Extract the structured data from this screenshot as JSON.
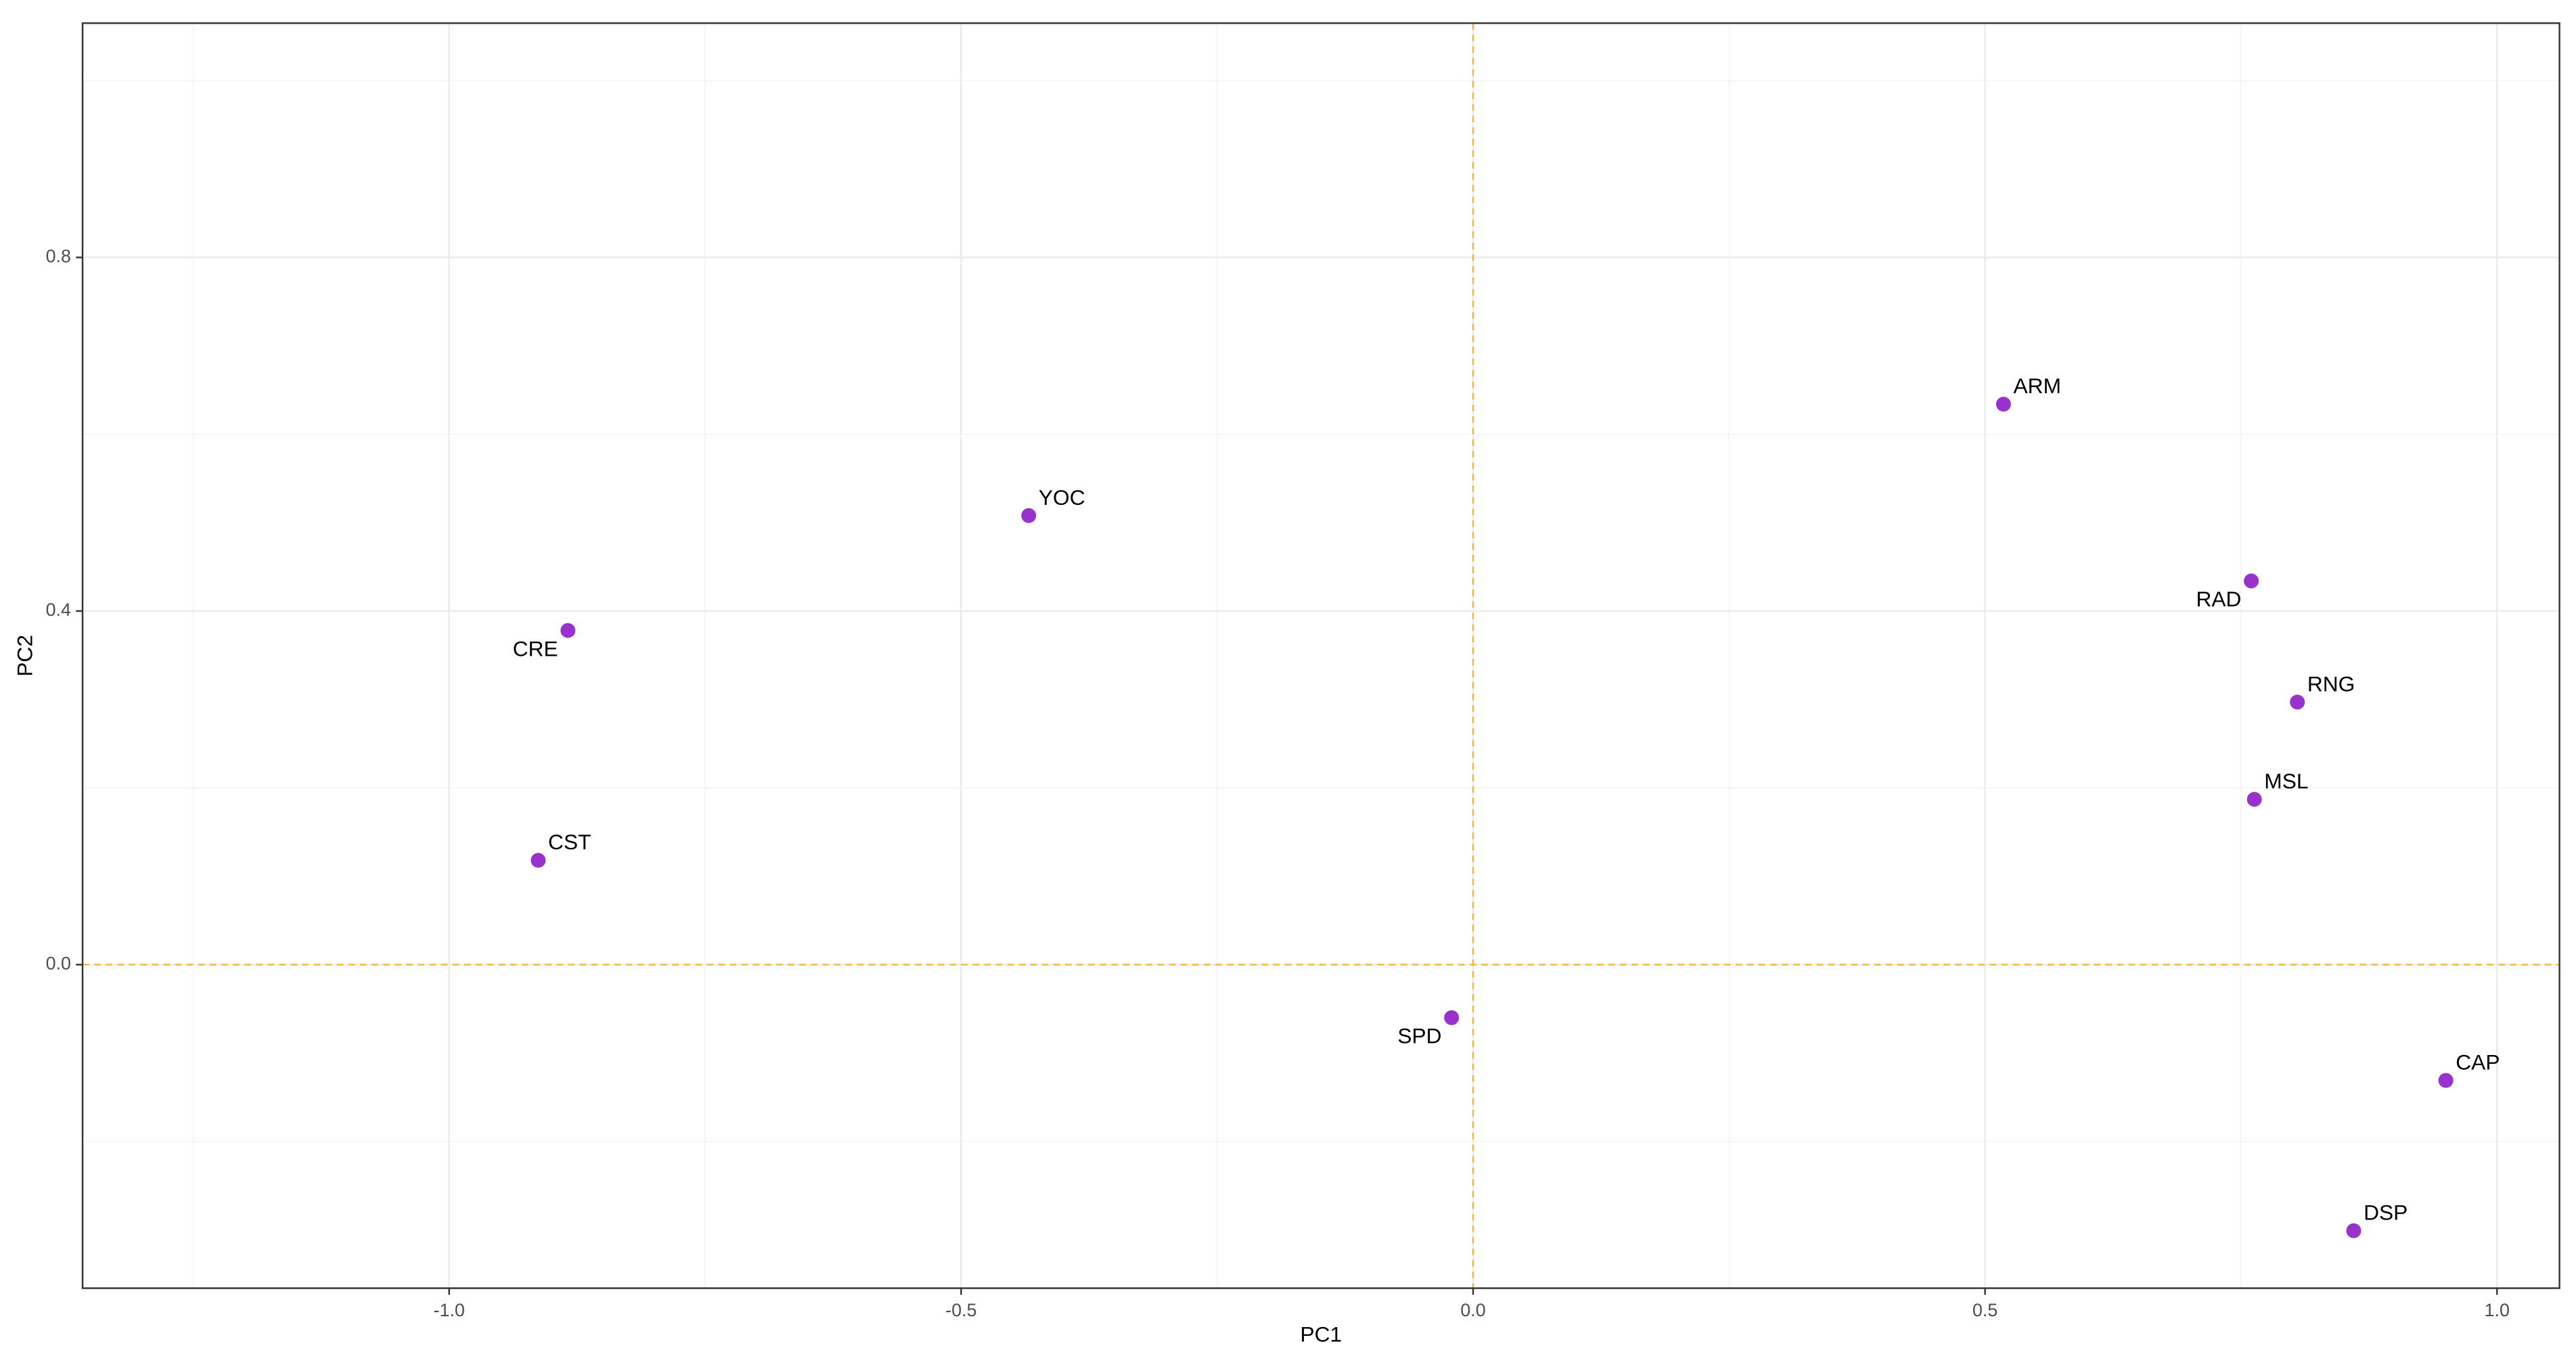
{
  "chart_data": {
    "type": "scatter",
    "xlabel": "PC1",
    "ylabel": "PC2",
    "labels": [
      "ARM",
      "YOC",
      "RAD",
      "CRE",
      "RNG",
      "MSL",
      "CST",
      "SPD",
      "CAP",
      "DSP"
    ],
    "x": [
      0.518,
      -0.434,
      0.76,
      -0.884,
      0.805,
      0.763,
      -0.913,
      -0.021,
      0.95,
      0.86
    ],
    "y": [
      0.634,
      0.508,
      0.434,
      0.378,
      0.297,
      0.187,
      0.118,
      -0.06,
      -0.131,
      -0.301
    ],
    "color": "#9932cc",
    "xlim": [
      -1.358,
      1.061
    ],
    "ylim": [
      -0.366,
      1.065
    ],
    "xticks": [
      {
        "value": -1.0,
        "label": "-1.0"
      },
      -0.5,
      {
        "value": 0,
        "label": "0.0"
      },
      0.5,
      {
        "value": 1.0,
        "label": "1.0"
      }
    ],
    "yticks": [
      {
        "value": 0,
        "label": "0.0"
      },
      0.4,
      0.8
    ],
    "xminor": [
      -1.25,
      -0.75,
      -0.25,
      0.25,
      0.75
    ],
    "yminor": [
      -0.2,
      0.2,
      0.6,
      1.0
    ],
    "hline": 0,
    "vline": 0,
    "ref_color": "#f0b73a",
    "grid": true
  }
}
